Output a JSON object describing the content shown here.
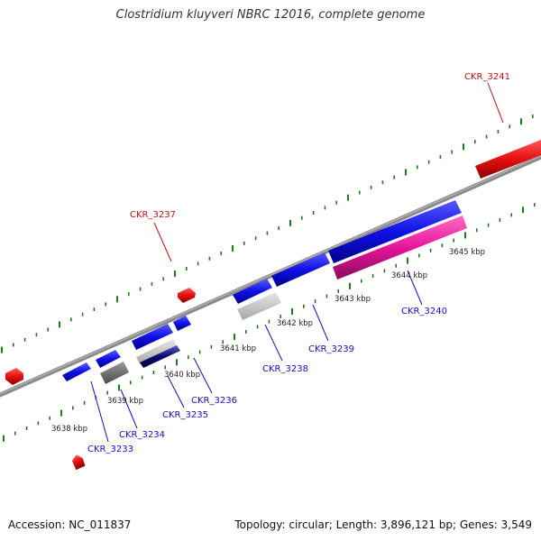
{
  "title": "Clostridium kluyveri NBRC 12016, complete genome",
  "footer": {
    "accession": "Accession: NC_011837",
    "summary": "Topology: circular; Length: 3,896,121 bp; Genes: 3,549"
  },
  "colors": {
    "backbone": "#8a8a8a",
    "ticks": "#1f7a1f",
    "forward_gene": "#1010e6",
    "reverse_gene_red": "#e60f0f",
    "rna_pink": "#e6159b",
    "pseudo_gray": "#6e6e6e",
    "light_gray": "#c8c8c8",
    "label_blue": "#1010c0",
    "label_red": "#c01010"
  },
  "scale_labels": [
    "3638 kbp",
    "3639 kbp",
    "3640 kbp",
    "3641 kbp",
    "3642 kbp",
    "3643 kbp",
    "3644 kbp",
    "3645 kbp"
  ],
  "gene_labels": [
    {
      "id": "ckr-3233",
      "text": "CKR_3233",
      "color": "blue"
    },
    {
      "id": "ckr-3234",
      "text": "CKR_3234",
      "color": "blue"
    },
    {
      "id": "ckr-3235",
      "text": "CKR_3235",
      "color": "blue"
    },
    {
      "id": "ckr-3236",
      "text": "CKR_3236",
      "color": "blue"
    },
    {
      "id": "ckr-3237",
      "text": "CKR_3237",
      "color": "red"
    },
    {
      "id": "ckr-3238",
      "text": "CKR_3238",
      "color": "blue"
    },
    {
      "id": "ckr-3239",
      "text": "CKR_3239",
      "color": "blue"
    },
    {
      "id": "ckr-3240",
      "text": "CKR_3240",
      "color": "blue"
    },
    {
      "id": "ckr-3241",
      "text": "CKR_3241",
      "color": "red"
    }
  ]
}
